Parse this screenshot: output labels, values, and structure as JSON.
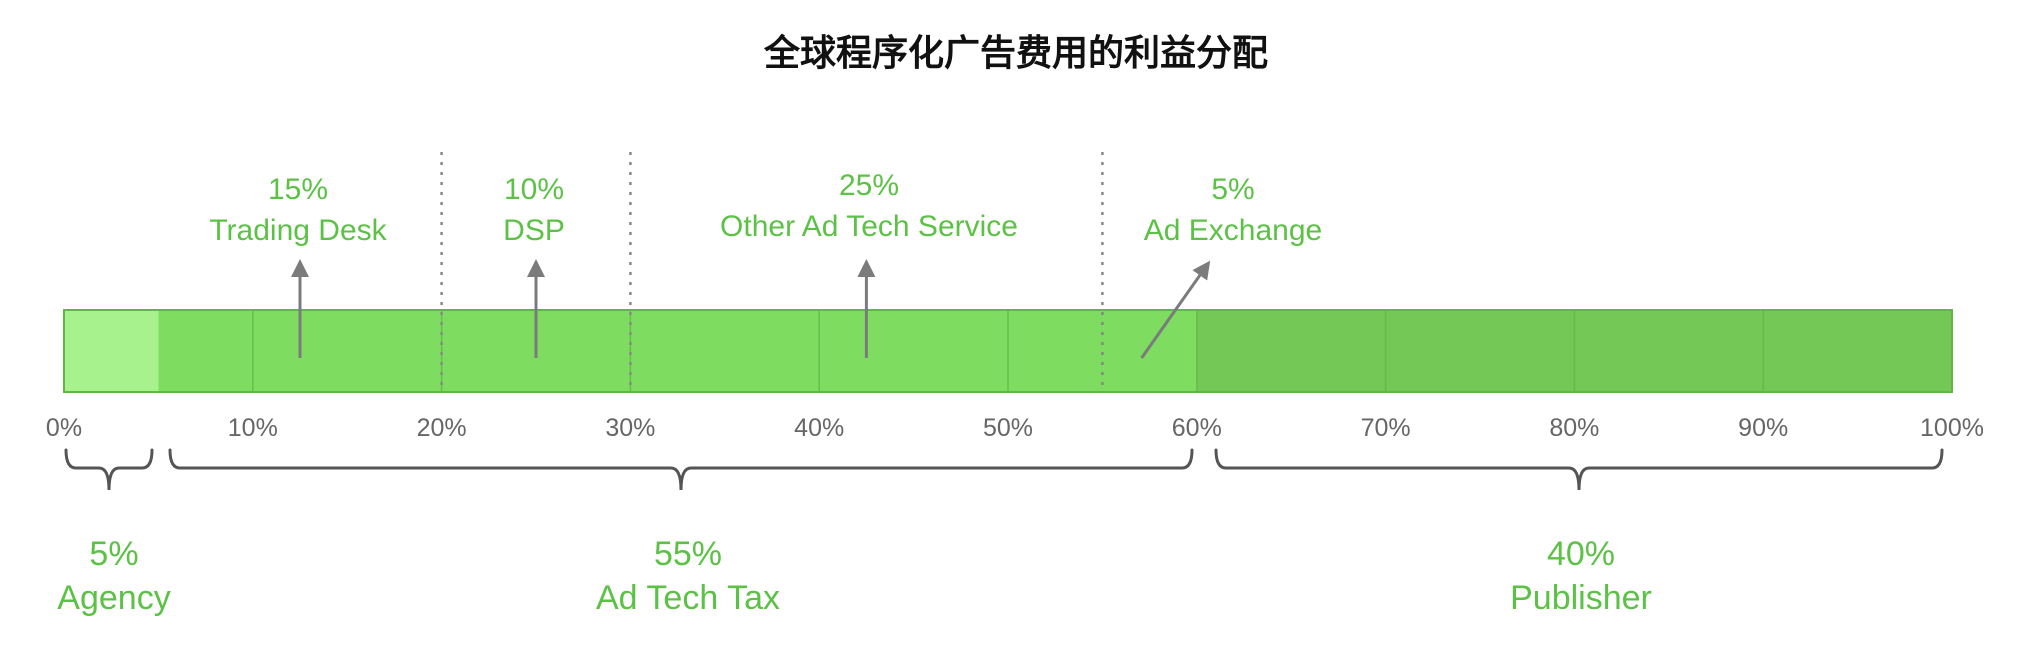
{
  "colors": {
    "agency": "#a7f28c",
    "adtech": "#7edc61",
    "publisher": "#73c856",
    "bar_border": "#5fb845",
    "label_green": "#5cc246",
    "arrow": "#7b7b7b",
    "dotted": "#888888",
    "brace": "#555555"
  },
  "chart_data": {
    "type": "bar",
    "orientation": "horizontal-stacked",
    "title": "全球程序化广告费用的利益分配",
    "xlim": [
      0,
      100
    ],
    "ticks": [
      "0%",
      "10%",
      "20%",
      "30%",
      "40%",
      "50%",
      "60%",
      "70%",
      "80%",
      "90%",
      "100%"
    ],
    "tick_values": [
      0,
      10,
      20,
      30,
      40,
      50,
      60,
      70,
      80,
      90,
      100
    ],
    "segments": [
      {
        "name": "Agency",
        "value": 5
      },
      {
        "name": "Ad Tech Tax",
        "value": 55
      },
      {
        "name": "Publisher",
        "value": 40
      }
    ],
    "ad_tech_breakdown": [
      {
        "name": "Trading Desk",
        "value": 15,
        "label": "15%",
        "range": [
          5,
          20
        ]
      },
      {
        "name": "DSP",
        "value": 10,
        "label": "10%",
        "range": [
          20,
          30
        ]
      },
      {
        "name": "Other Ad Tech Service",
        "value": 25,
        "label": "25%",
        "range": [
          30,
          55
        ]
      },
      {
        "name": "Ad Exchange",
        "value": 5,
        "label": "5%",
        "range": [
          55,
          60
        ]
      }
    ],
    "dividers": [
      20,
      30,
      55
    ],
    "groups": [
      {
        "name": "Agency",
        "label": "5%",
        "range": [
          0,
          5
        ]
      },
      {
        "name": "Ad Tech Tax",
        "label": "55%",
        "range": [
          5,
          60
        ]
      },
      {
        "name": "Publisher",
        "label": "40%",
        "range": [
          60,
          100
        ]
      }
    ]
  }
}
